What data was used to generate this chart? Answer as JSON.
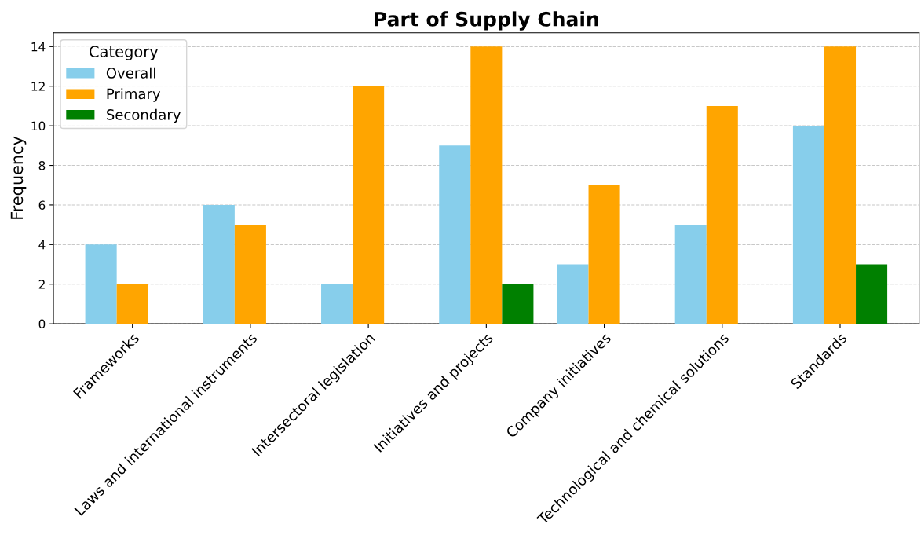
{
  "chart_data": {
    "type": "bar",
    "title": "Part of Supply Chain",
    "ylabel": "Frequency",
    "legend_title": "Category",
    "categories": [
      "Frameworks",
      "Laws and international instruments",
      "Intersectoral legislation",
      "Initiatives and projects",
      "Company initiatives",
      "Technological and chemical solutions",
      "Standards"
    ],
    "series": [
      {
        "name": "Overall",
        "color": "#87ceeb",
        "values": [
          4,
          6,
          2,
          9,
          3,
          5,
          10
        ]
      },
      {
        "name": "Primary",
        "color": "#ffa500",
        "values": [
          2,
          5,
          12,
          14,
          7,
          11,
          14
        ]
      },
      {
        "name": "Secondary",
        "color": "#008000",
        "values": [
          0,
          0,
          0,
          2,
          0,
          0,
          3
        ]
      }
    ],
    "ylim": [
      0,
      14.7
    ],
    "yticks": [
      0,
      2,
      4,
      6,
      8,
      10,
      12,
      14
    ],
    "grid": "y",
    "legend": "top left"
  }
}
